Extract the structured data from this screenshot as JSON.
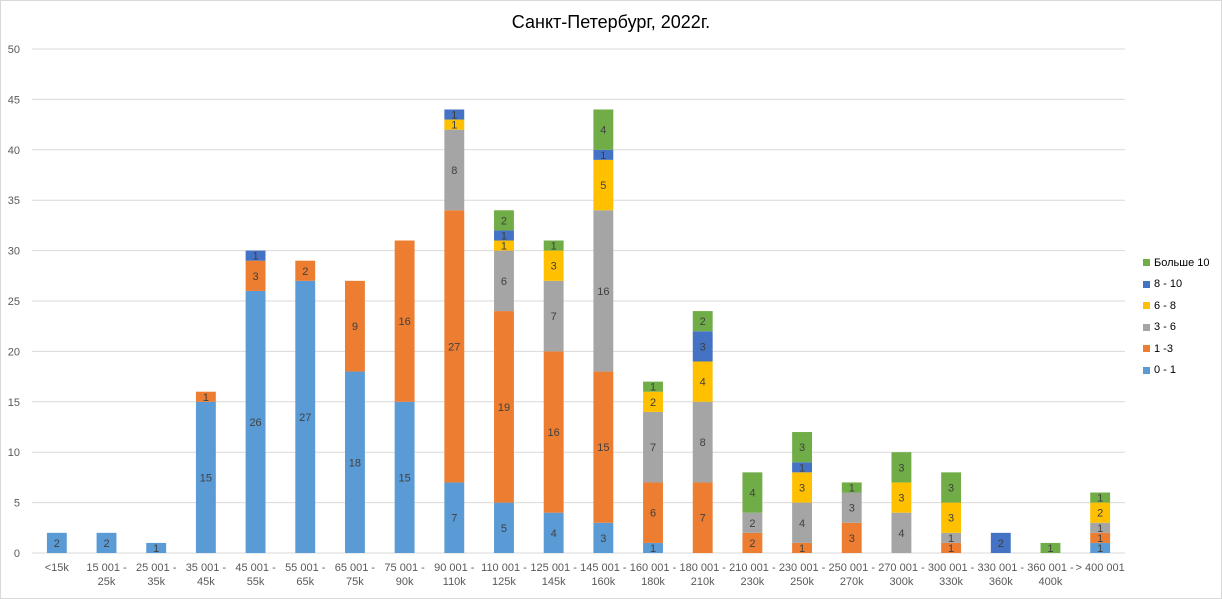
{
  "chart_data": {
    "type": "bar",
    "stacked": true,
    "title": "Санкт-Петербург, 2022г.",
    "xlabel": "",
    "ylabel": "",
    "ylim": [
      0,
      50
    ],
    "yticks": [
      0,
      5,
      10,
      15,
      20,
      25,
      30,
      35,
      40,
      45,
      50
    ],
    "grid": true,
    "legend_position": "right",
    "categories": [
      [
        "<15k"
      ],
      [
        "15 001 -",
        "25k"
      ],
      [
        "25 001 -",
        "35k"
      ],
      [
        "35 001 -",
        "45k"
      ],
      [
        "45 001 -",
        "55k"
      ],
      [
        "55 001 -",
        "65k"
      ],
      [
        "65 001 -",
        "75k"
      ],
      [
        "75 001 -",
        "90k"
      ],
      [
        "90 001 -",
        "110k"
      ],
      [
        "110 001 -",
        "125k"
      ],
      [
        "125 001 -",
        "145k"
      ],
      [
        "145 001 -",
        "160k"
      ],
      [
        "160 001 -",
        "180k"
      ],
      [
        "180 001 -",
        "210k"
      ],
      [
        "210 001 -",
        "230k"
      ],
      [
        "230 001 -",
        "250k"
      ],
      [
        "250 001 -",
        "270k"
      ],
      [
        "270 001 -",
        "300k"
      ],
      [
        "300 001 -",
        "330k"
      ],
      [
        "330 001 -",
        "360k"
      ],
      [
        "360 001 -",
        "400k"
      ],
      [
        "> 400 001"
      ]
    ],
    "series": [
      {
        "name": "0 - 1",
        "color": "#5b9bd5",
        "values": [
          2,
          2,
          1,
          15,
          26,
          27,
          18,
          15,
          7,
          5,
          4,
          3,
          1,
          0,
          0,
          0,
          0,
          0,
          0,
          0,
          0,
          1
        ]
      },
      {
        "name": "1 -3",
        "color": "#ed7d31",
        "values": [
          0,
          0,
          0,
          1,
          3,
          2,
          9,
          16,
          27,
          19,
          16,
          15,
          6,
          7,
          2,
          1,
          3,
          0,
          1,
          0,
          0,
          1
        ]
      },
      {
        "name": "3 - 6",
        "color": "#a5a5a5",
        "values": [
          0,
          0,
          0,
          0,
          0,
          0,
          0,
          0,
          8,
          6,
          7,
          16,
          7,
          8,
          2,
          4,
          3,
          4,
          1,
          0,
          0,
          1
        ]
      },
      {
        "name": "6 - 8",
        "color": "#ffc000",
        "values": [
          0,
          0,
          0,
          0,
          0,
          0,
          0,
          0,
          1,
          1,
          3,
          5,
          2,
          4,
          0,
          3,
          0,
          3,
          3,
          0,
          0,
          2
        ]
      },
      {
        "name": "8 - 10",
        "color": "#4472c4",
        "values": [
          0,
          0,
          0,
          0,
          1,
          0,
          0,
          0,
          1,
          1,
          0,
          1,
          0,
          3,
          0,
          1,
          0,
          0,
          0,
          2,
          0,
          0
        ]
      },
      {
        "name": "Больше 10",
        "color": "#70ad47",
        "values": [
          0,
          0,
          0,
          0,
          0,
          0,
          0,
          0,
          0,
          2,
          1,
          4,
          1,
          2,
          4,
          3,
          1,
          3,
          3,
          0,
          1,
          1
        ]
      }
    ]
  }
}
